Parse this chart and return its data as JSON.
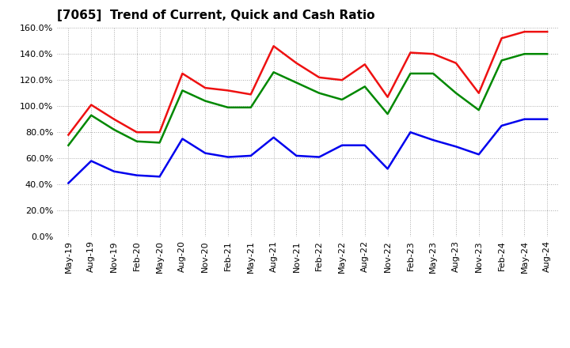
{
  "title": "[7065]  Trend of Current, Quick and Cash Ratio",
  "labels": [
    "May-19",
    "Aug-19",
    "Nov-19",
    "Feb-20",
    "May-20",
    "Aug-20",
    "Nov-20",
    "Feb-21",
    "May-21",
    "Aug-21",
    "Nov-21",
    "Feb-22",
    "May-22",
    "Aug-22",
    "Nov-22",
    "Feb-23",
    "May-23",
    "Aug-23",
    "Nov-23",
    "Feb-24",
    "May-24",
    "Aug-24"
  ],
  "current_ratio": [
    0.78,
    1.01,
    0.9,
    0.8,
    0.8,
    1.25,
    1.14,
    1.12,
    1.09,
    1.46,
    1.33,
    1.22,
    1.2,
    1.32,
    1.07,
    1.41,
    1.4,
    1.33,
    1.1,
    1.52,
    1.57,
    1.57
  ],
  "quick_ratio": [
    0.7,
    0.93,
    0.82,
    0.73,
    0.72,
    1.12,
    1.04,
    0.99,
    0.99,
    1.26,
    1.18,
    1.1,
    1.05,
    1.15,
    0.94,
    1.25,
    1.25,
    1.1,
    0.97,
    1.35,
    1.4,
    1.4
  ],
  "cash_ratio": [
    0.41,
    0.58,
    0.5,
    0.47,
    0.46,
    0.75,
    0.64,
    0.61,
    0.62,
    0.76,
    0.62,
    0.61,
    0.7,
    0.7,
    0.52,
    0.8,
    0.74,
    0.69,
    0.63,
    0.85,
    0.9,
    0.9
  ],
  "current_color": "#EE1111",
  "quick_color": "#008800",
  "cash_color": "#0000EE",
  "ylim": [
    0.0,
    1.6
  ],
  "yticks": [
    0.0,
    0.2,
    0.4,
    0.6,
    0.8,
    1.0,
    1.2,
    1.4,
    1.6
  ],
  "background_color": "#FFFFFF",
  "grid_color": "#AAAAAA",
  "line_width": 1.8,
  "title_fontsize": 11,
  "tick_fontsize": 8,
  "legend_fontsize": 9
}
